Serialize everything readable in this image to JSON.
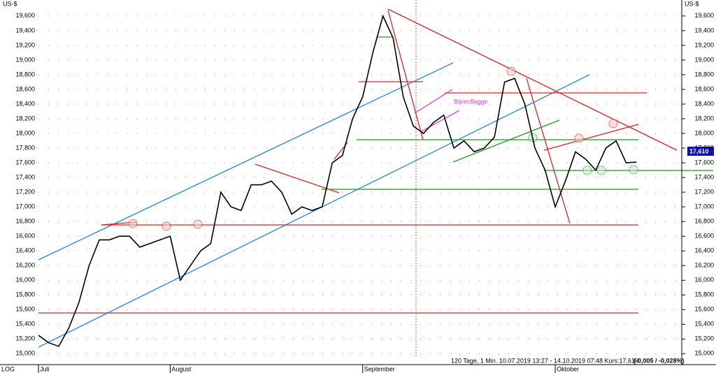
{
  "chart_data": {
    "type": "line",
    "y_unit": "US-$",
    "log_label": "LOG",
    "annotation": "Bärenflagge",
    "footer": "120 Tage, 1 Min. 10.07.2019 13:27 - 14.10.2019 07:48 Kurs:17,610",
    "footer_change": "(-0,005 / -0,028%)",
    "last_price_label": "17,610",
    "color": "#000000",
    "categories": [
      "Juli",
      null,
      null,
      null,
      null,
      null,
      null,
      null,
      null,
      null,
      null,
      null,
      null,
      "August",
      null,
      null,
      null,
      null,
      null,
      null,
      null,
      null,
      null,
      null,
      null,
      null,
      null,
      null,
      null,
      null,
      null,
      null,
      "September",
      null,
      null,
      null,
      null,
      null,
      null,
      null,
      null,
      null,
      null,
      null,
      null,
      null,
      null,
      null,
      null,
      null,
      null,
      "Oktober",
      null,
      null,
      null,
      null,
      null,
      null,
      null,
      null
    ],
    "values": [
      15250,
      15150,
      15100,
      15350,
      15700,
      16200,
      16550,
      16550,
      16600,
      16600,
      16450,
      16500,
      16550,
      16600,
      16000,
      16200,
      16400,
      16500,
      17200,
      17000,
      16950,
      17300,
      17300,
      17350,
      17200,
      16900,
      17000,
      16950,
      17000,
      17600,
      17700,
      18200,
      18500,
      19100,
      19600,
      19300,
      18500,
      18100,
      18000,
      18150,
      18250,
      17800,
      17900,
      17750,
      17800,
      17950,
      18700,
      18750,
      18400,
      17800,
      17500,
      17000,
      17350,
      17750,
      17650,
      17500,
      17800,
      17900,
      17600,
      17610
    ],
    "ylim": [
      14870,
      19770
    ],
    "yticks": [
      {
        "value": 15000,
        "label": "15,000"
      },
      {
        "value": 15200,
        "label": "15,200"
      },
      {
        "value": 15400,
        "label": "15,400"
      },
      {
        "value": 15600,
        "label": "15,600"
      },
      {
        "value": 15800,
        "label": "15,800"
      },
      {
        "value": 16000,
        "label": "16,000"
      },
      {
        "value": 16200,
        "label": "16,200"
      },
      {
        "value": 16400,
        "label": "16,400"
      },
      {
        "value": 16600,
        "label": "16,600"
      },
      {
        "value": 16800,
        "label": "16,800"
      },
      {
        "value": 17000,
        "label": "17,000"
      },
      {
        "value": 17200,
        "label": "17,200"
      },
      {
        "value": 17400,
        "label": "17,400"
      },
      {
        "value": 17600,
        "label": "17,600"
      },
      {
        "value": 17800,
        "label": "17,800"
      },
      {
        "value": 18000,
        "label": "18,000"
      },
      {
        "value": 18200,
        "label": "18,200"
      },
      {
        "value": 18400,
        "label": "18,400"
      },
      {
        "value": 18600,
        "label": "18,600"
      },
      {
        "value": 18800,
        "label": "18,800"
      },
      {
        "value": 19000,
        "label": "19,000"
      },
      {
        "value": 19200,
        "label": "19,200"
      },
      {
        "value": 19400,
        "label": "19,400"
      },
      {
        "value": 19600,
        "label": "19,600"
      }
    ],
    "grid": true
  }
}
